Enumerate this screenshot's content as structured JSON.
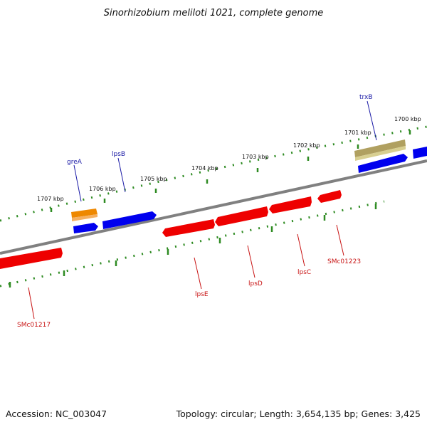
{
  "title": "Sinorhizobium meliloti 1021, complete genome",
  "footer": {
    "accession": "Accession: NC_003047",
    "summary": "Topology: circular; Length: 3,654,135 bp; Genes: 3,425"
  },
  "colors": {
    "backbone": "#808080",
    "scale_ticks": "#2e8b22",
    "forward_gene": "#0000ee",
    "reverse_gene": "#ee0000",
    "gold_gene": "#b0a060",
    "orange_gene": "#ee8800",
    "label_blue": "#1a1aa6",
    "label_red": "#c81414"
  },
  "scale_labels": [
    "1707 kbp",
    "1706 kbp",
    "1705 kbp",
    "1704 kbp",
    "1703 kbp",
    "1702 kbp",
    "1701 kbp",
    "1700 kbp"
  ],
  "gene_labels": {
    "greA": "greA",
    "lpsB": "lpsB",
    "trxB": "trxB",
    "lpsE": "lpsE",
    "lpsD": "lpsD",
    "lpsC": "lpsC",
    "SMc01223": "SMc01223",
    "SMc01217": "SMc01217"
  }
}
